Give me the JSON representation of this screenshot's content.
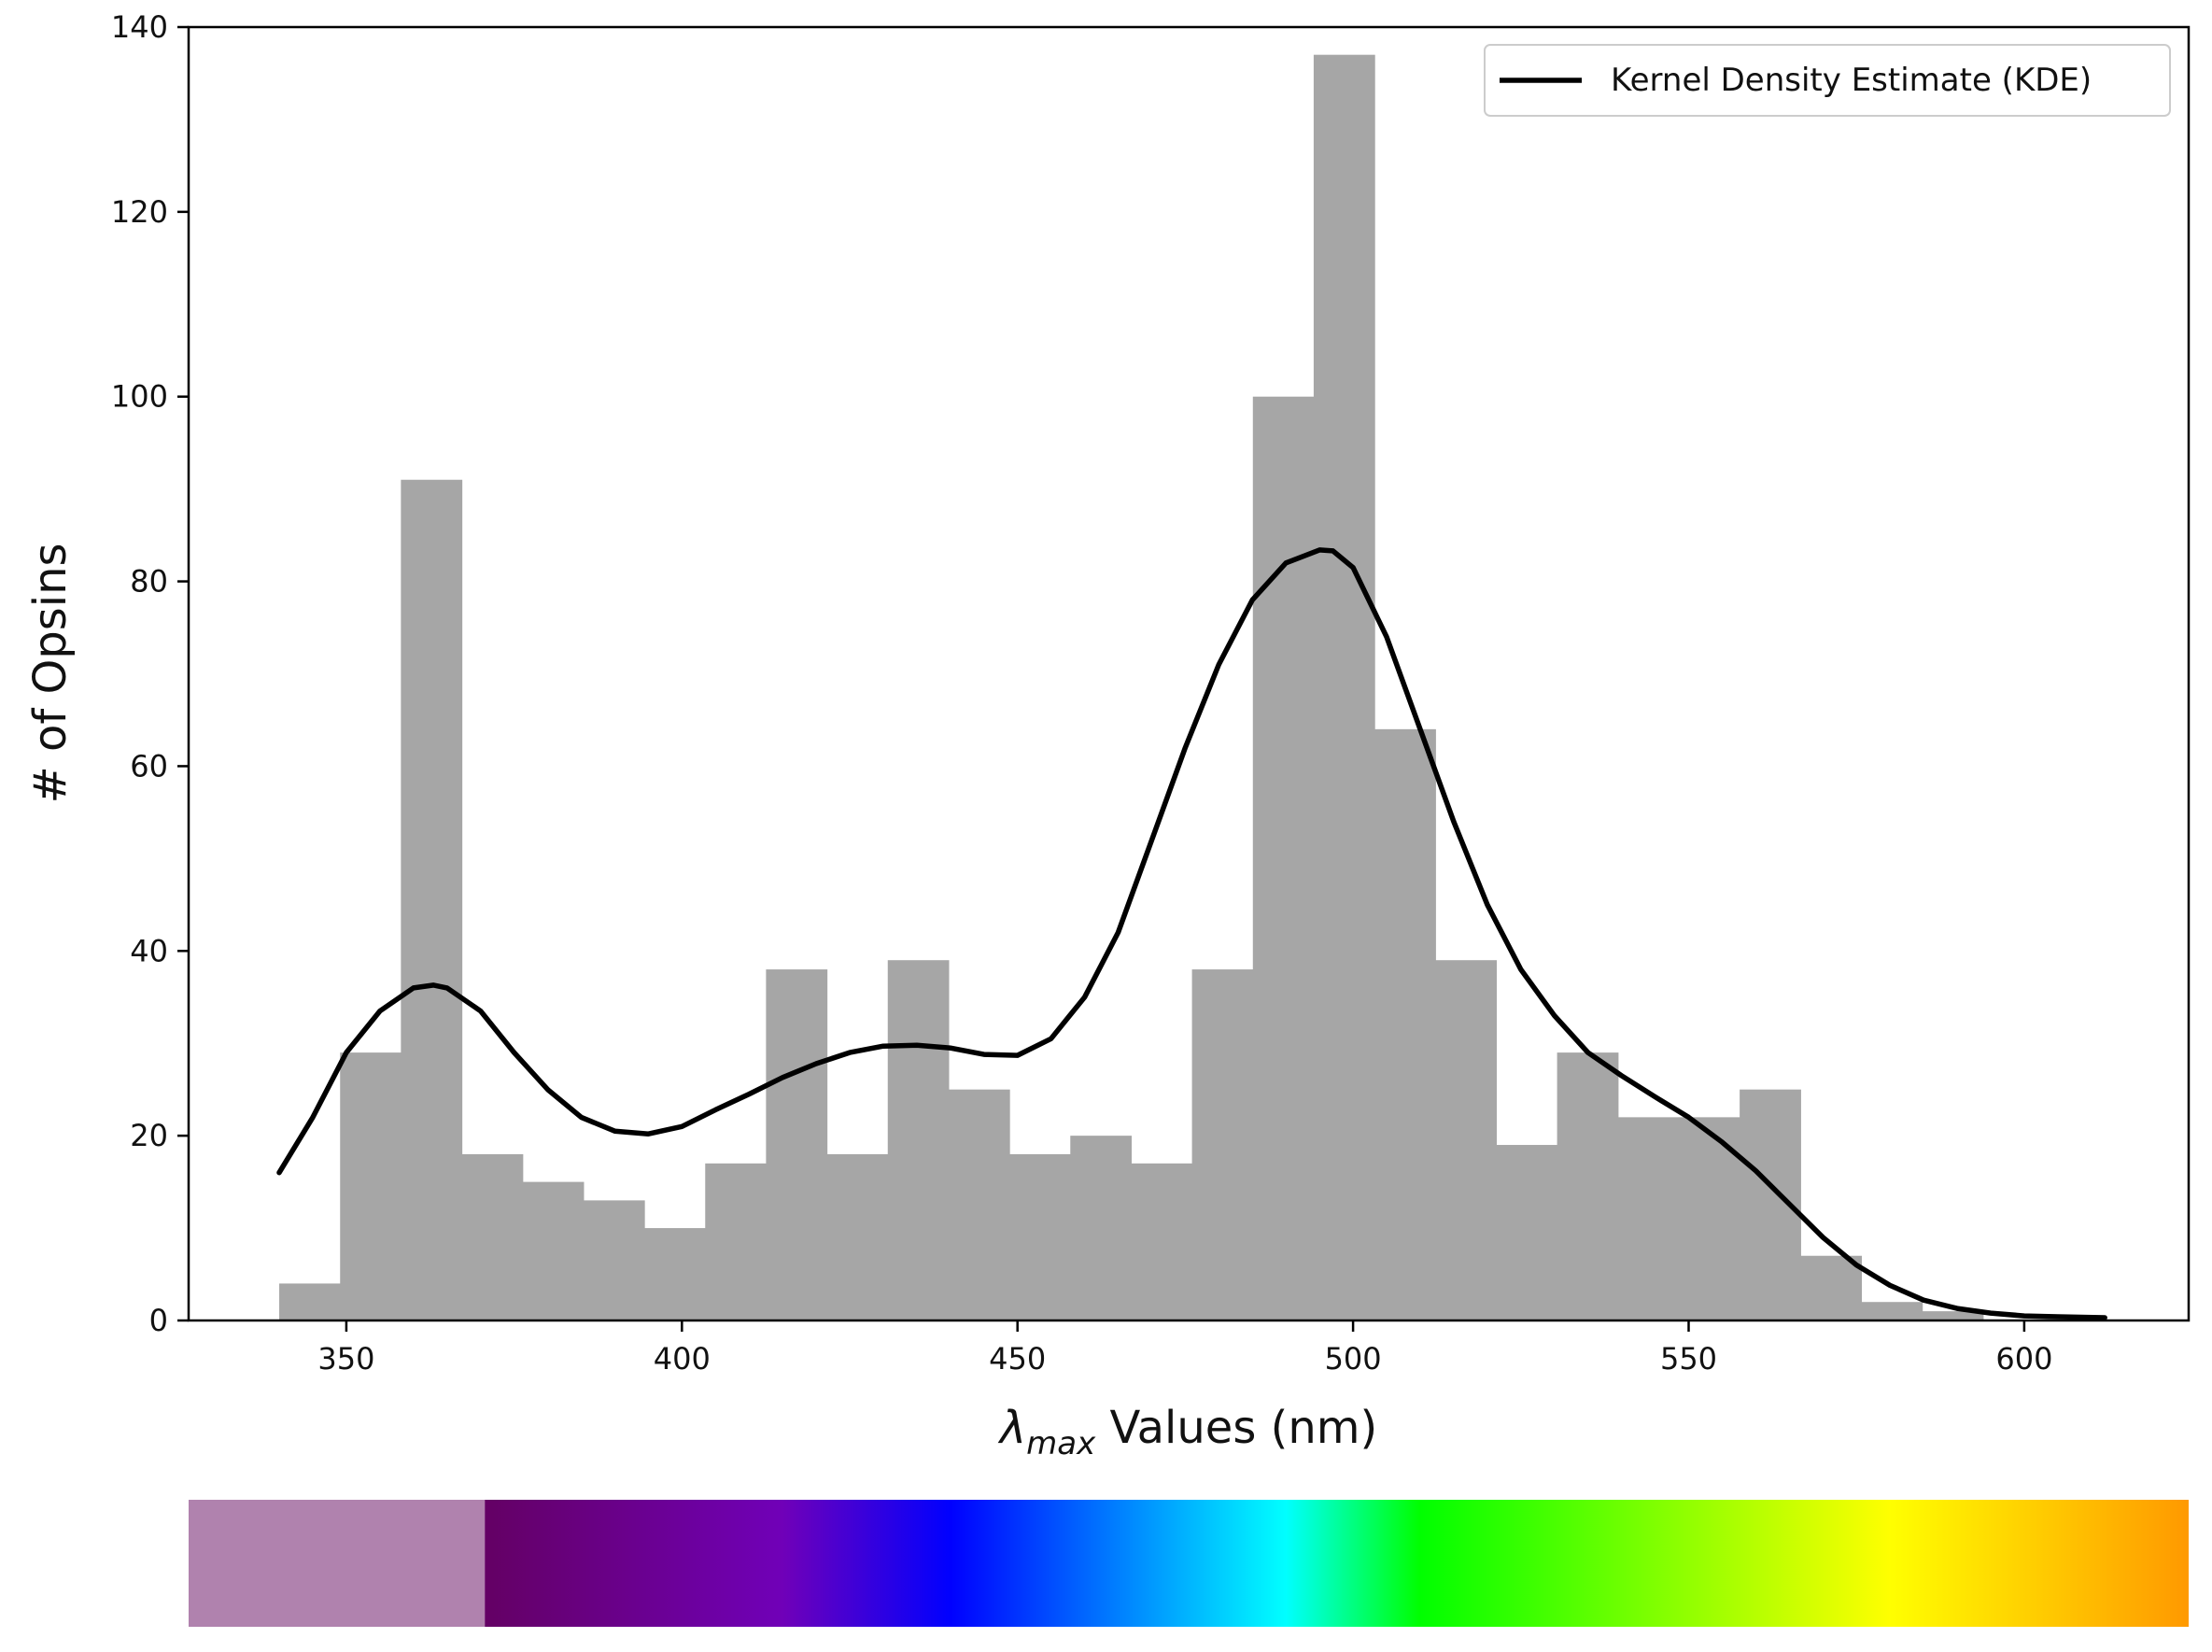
{
  "chart_data": {
    "type": "bar",
    "xlabel_symbol": "λ",
    "xlabel_subscript": "max",
    "xlabel_rest": " Values (nm)",
    "ylabel": "# of Opsins",
    "xlim": [
      326.5,
      624.5
    ],
    "ylim": [
      0,
      140
    ],
    "xticks": [
      350,
      400,
      450,
      500,
      550,
      600
    ],
    "yticks": [
      0,
      20,
      40,
      60,
      80,
      100,
      120,
      140
    ],
    "grid": false,
    "legend": {
      "position": "top-right",
      "entries": [
        "Kernel Density Estimate (KDE)"
      ]
    },
    "series": [
      {
        "kind": "histogram",
        "color": "#a6a6a6",
        "bin_edges": [
          340,
          349.07,
          358.13,
          367.2,
          376.27,
          385.33,
          394.4,
          403.47,
          412.53,
          421.6,
          430.67,
          439.73,
          448.8,
          457.87,
          466.93,
          476,
          485.07,
          494.13,
          503.2,
          512.27,
          521.33,
          530.4,
          539.47,
          548.53,
          557.6,
          566.67,
          575.73,
          584.8,
          593.87,
          602.93,
          612
        ],
        "values": [
          4,
          29,
          91,
          18,
          15,
          13,
          10,
          17,
          38,
          18,
          39,
          25,
          18,
          20,
          17,
          38,
          100,
          137,
          64,
          39,
          19,
          29,
          22,
          22,
          25,
          7,
          2,
          1,
          0,
          0
        ]
      },
      {
        "name": "Kernel Density Estimate (KDE)",
        "kind": "line",
        "color": "#000000",
        "x": [
          340,
          345,
          350,
          355,
          360,
          363,
          365,
          370,
          375,
          380,
          385,
          390,
          395,
          400,
          405,
          410,
          415,
          420,
          425,
          430,
          435,
          440,
          445,
          450,
          455,
          460,
          465,
          470,
          475,
          480,
          485,
          490,
          495,
          497,
          500,
          505,
          510,
          515,
          520,
          525,
          530,
          535,
          540,
          545,
          550,
          555,
          560,
          565,
          570,
          575,
          580,
          585,
          590,
          595,
          600,
          605,
          612
        ],
        "y": [
          16,
          22,
          29,
          33.5,
          36,
          36.3,
          36,
          33.5,
          29,
          25,
          22,
          20.5,
          20.2,
          21,
          22.8,
          24.5,
          26.3,
          27.8,
          29,
          29.7,
          29.8,
          29.5,
          28.8,
          28.7,
          30.5,
          35,
          42,
          52,
          62,
          71,
          78,
          82,
          83.4,
          83.3,
          81.5,
          74,
          64,
          54,
          45,
          38,
          33,
          29,
          26.5,
          24.2,
          22,
          19.3,
          16.2,
          12.6,
          9,
          6,
          3.8,
          2.2,
          1.3,
          0.8,
          0.5,
          0.4,
          0.3
        ]
      }
    ]
  },
  "colorbar": {
    "range": [
      326.5,
      624.5
    ],
    "stops": [
      {
        "at": 326.5,
        "color": "#b082ae"
      },
      {
        "at": 370.6,
        "color": "#b082ae"
      },
      {
        "at": 370.7,
        "color": "#640064"
      },
      {
        "at": 415,
        "color": "#7000b8"
      },
      {
        "at": 440,
        "color": "#0000ff"
      },
      {
        "at": 490,
        "color": "#00ffff"
      },
      {
        "at": 510,
        "color": "#00ff00"
      },
      {
        "at": 580,
        "color": "#ffff00"
      },
      {
        "at": 624.5,
        "color": "#ff9900"
      }
    ]
  }
}
